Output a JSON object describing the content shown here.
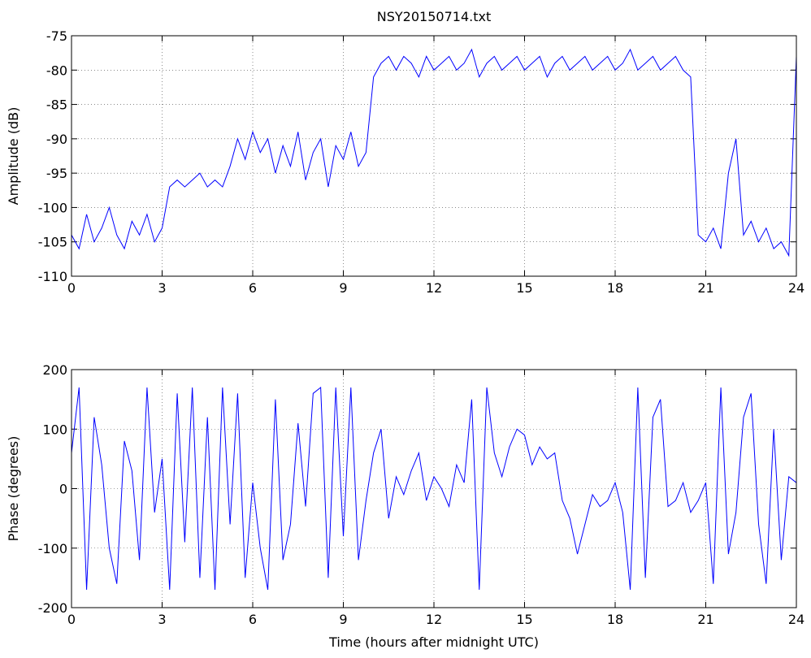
{
  "chart_data": [
    {
      "type": "line",
      "title": "NSY20150714.txt",
      "y_label": "Amplitude (dB)",
      "x": [
        0,
        0.25,
        0.5,
        0.75,
        1,
        1.25,
        1.5,
        1.75,
        2,
        2.25,
        2.5,
        2.75,
        3,
        3.25,
        3.5,
        3.75,
        4,
        4.25,
        4.5,
        4.75,
        5,
        5.25,
        5.5,
        5.75,
        6,
        6.25,
        6.5,
        6.75,
        7,
        7.25,
        7.5,
        7.75,
        8,
        8.25,
        8.5,
        8.75,
        9,
        9.25,
        9.5,
        9.75,
        10,
        10.25,
        10.5,
        10.75,
        11,
        11.25,
        11.5,
        11.75,
        12,
        12.25,
        12.5,
        12.75,
        13,
        13.25,
        13.5,
        13.75,
        14,
        14.25,
        14.5,
        14.75,
        15,
        15.25,
        15.5,
        15.75,
        16,
        16.25,
        16.5,
        16.75,
        17,
        17.25,
        17.5,
        17.75,
        18,
        18.25,
        18.5,
        18.75,
        19,
        19.25,
        19.5,
        19.75,
        20,
        20.25,
        20.5,
        20.75,
        21,
        21.25,
        21.5,
        21.75,
        22,
        22.25,
        22.5,
        22.75,
        23,
        23.25,
        23.5,
        23.75,
        24
      ],
      "series": [
        {
          "color": "#0000ff",
          "values": [
            -104,
            -106,
            -101,
            -105,
            -103,
            -100,
            -104,
            -106,
            -102,
            -104,
            -101,
            -105,
            -103,
            -97,
            -96,
            -97,
            -96,
            -95,
            -97,
            -96,
            -97,
            -94,
            -90,
            -93,
            -89,
            -92,
            -90,
            -95,
            -91,
            -94,
            -89,
            -96,
            -92,
            -90,
            -97,
            -91,
            -93,
            -89,
            -94,
            -92,
            -81,
            -79,
            -78,
            -80,
            -78,
            -79,
            -81,
            -78,
            -80,
            -79,
            -78,
            -80,
            -79,
            -77,
            -81,
            -79,
            -78,
            -80,
            -79,
            -78,
            -80,
            -79,
            -78,
            -81,
            -79,
            -78,
            -80,
            -79,
            -78,
            -80,
            -79,
            -78,
            -80,
            -79,
            -77,
            -80,
            -79,
            -78,
            -80,
            -79,
            -78,
            -80,
            -81,
            -104,
            -105,
            -103,
            -106,
            -95,
            -90,
            -104,
            -102,
            -105,
            -103,
            -106,
            -105,
            -107,
            -78
          ]
        }
      ],
      "xlim": [
        0,
        24
      ],
      "xticks": [
        0,
        3,
        6,
        9,
        12,
        15,
        18,
        21,
        24
      ],
      "ylim": [
        -110,
        -75
      ],
      "yticks": [
        -110,
        -105,
        -100,
        -95,
        -90,
        -85,
        -80,
        -75
      ],
      "grid": true
    },
    {
      "type": "line",
      "x_label": "Time (hours after midnight UTC)",
      "y_label": "Phase (degrees)",
      "x": [
        0,
        0.25,
        0.5,
        0.75,
        1,
        1.25,
        1.5,
        1.75,
        2,
        2.25,
        2.5,
        2.75,
        3,
        3.25,
        3.5,
        3.75,
        4,
        4.25,
        4.5,
        4.75,
        5,
        5.25,
        5.5,
        5.75,
        6,
        6.25,
        6.5,
        6.75,
        7,
        7.25,
        7.5,
        7.75,
        8,
        8.25,
        8.5,
        8.75,
        9,
        9.25,
        9.5,
        9.75,
        10,
        10.25,
        10.5,
        10.75,
        11,
        11.25,
        11.5,
        11.75,
        12,
        12.25,
        12.5,
        12.75,
        13,
        13.25,
        13.5,
        13.75,
        14,
        14.25,
        14.5,
        14.75,
        15,
        15.25,
        15.5,
        15.75,
        16,
        16.25,
        16.5,
        16.75,
        17,
        17.25,
        17.5,
        17.75,
        18,
        18.25,
        18.5,
        18.75,
        19,
        19.25,
        19.5,
        19.75,
        20,
        20.25,
        20.5,
        20.75,
        21,
        21.25,
        21.5,
        21.75,
        22,
        22.25,
        22.5,
        22.75,
        23,
        23.25,
        23.5,
        23.75,
        24
      ],
      "series": [
        {
          "color": "#0000ff",
          "values": [
            60,
            170,
            -170,
            120,
            40,
            -100,
            -160,
            80,
            30,
            -120,
            170,
            -40,
            50,
            -170,
            160,
            -90,
            170,
            -150,
            120,
            -170,
            170,
            -60,
            160,
            -150,
            10,
            -100,
            -170,
            150,
            -120,
            -60,
            110,
            -30,
            160,
            170,
            -150,
            170,
            -80,
            170,
            -120,
            -20,
            60,
            100,
            -50,
            20,
            -10,
            30,
            60,
            -20,
            20,
            0,
            -30,
            40,
            10,
            150,
            -170,
            170,
            60,
            20,
            70,
            100,
            90,
            40,
            70,
            50,
            60,
            -20,
            -50,
            -110,
            -60,
            -10,
            -30,
            -20,
            10,
            -40,
            -170,
            170,
            -150,
            120,
            150,
            -30,
            -20,
            10,
            -40,
            -20,
            10,
            -160,
            170,
            -110,
            -40,
            120,
            160,
            -60,
            -160,
            100,
            -120,
            20,
            10
          ]
        }
      ],
      "xlim": [
        0,
        24
      ],
      "xticks": [
        0,
        3,
        6,
        9,
        12,
        15,
        18,
        21,
        24
      ],
      "ylim": [
        -200,
        200
      ],
      "yticks": [
        -200,
        -100,
        0,
        100,
        200
      ],
      "grid": true
    }
  ]
}
